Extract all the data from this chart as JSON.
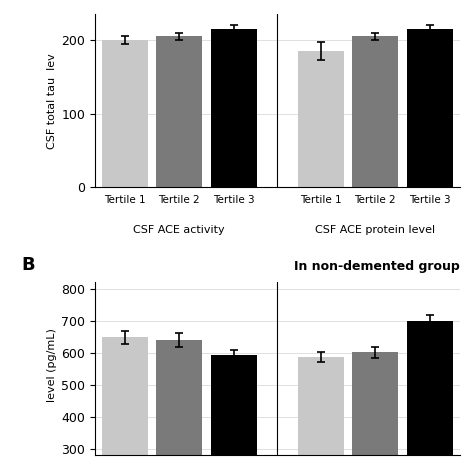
{
  "panel_A": {
    "values": [
      200,
      205,
      215,
      185,
      205,
      215
    ],
    "errors": [
      5,
      5,
      5,
      12,
      5,
      5
    ],
    "colors": [
      "#c8c8c8",
      "#7a7a7a",
      "#000000",
      "#c8c8c8",
      "#7a7a7a",
      "#000000"
    ],
    "xtick_labels": [
      "Tertile 1",
      "Tertile 2",
      "Tertile 3",
      "Tertile 1",
      "Tertile 2",
      "Tertile 3"
    ],
    "group_labels": [
      "CSF ACE activity",
      "CSF ACE protein level"
    ],
    "ylabel": "CSF total tau  lev",
    "yticks": [
      0,
      100,
      200
    ],
    "ylim": [
      0,
      235
    ],
    "annotation": "In non-demented group"
  },
  "panel_B": {
    "values": [
      648,
      638,
      593,
      587,
      601,
      700
    ],
    "errors": [
      20,
      22,
      15,
      15,
      18,
      18
    ],
    "colors": [
      "#c8c8c8",
      "#7a7a7a",
      "#000000",
      "#c8c8c8",
      "#7a7a7a",
      "#000000"
    ],
    "ylabel": "  level (pg/mL)",
    "yticks": [
      300,
      400,
      500,
      600,
      700,
      800
    ],
    "ylim": [
      280,
      820
    ],
    "panel_label": "B"
  }
}
